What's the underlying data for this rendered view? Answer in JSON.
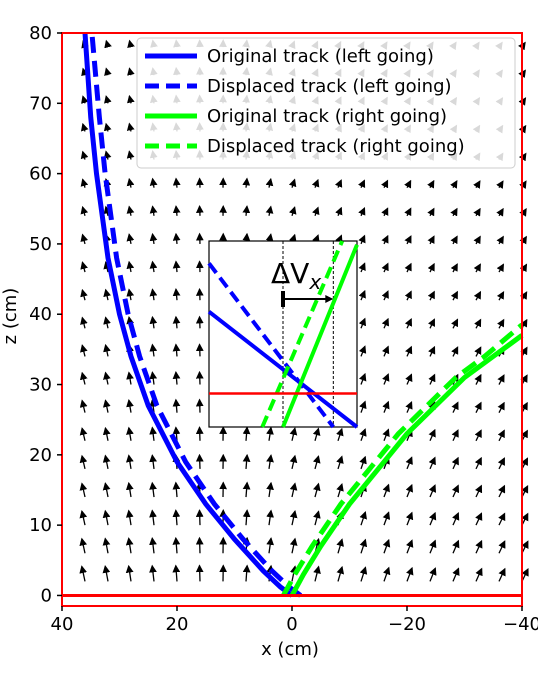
{
  "chart_data": {
    "type": "line",
    "xlabel": "x (cm)",
    "ylabel": "z (cm)",
    "xlim": [
      40,
      -40
    ],
    "ylim": [
      -1.5,
      80
    ],
    "xticks": [
      {
        "value": 40,
        "label": "40"
      },
      {
        "value": 20,
        "label": "20"
      },
      {
        "value": 0,
        "label": "0"
      },
      {
        "value": -20,
        "label": "−20"
      },
      {
        "value": -40,
        "label": "−40"
      }
    ],
    "yticks": [
      {
        "value": 0,
        "label": "0"
      },
      {
        "value": 10,
        "label": "10"
      },
      {
        "value": 20,
        "label": "20"
      },
      {
        "value": 30,
        "label": "30"
      },
      {
        "value": 40,
        "label": "40"
      },
      {
        "value": 50,
        "label": "50"
      },
      {
        "value": 60,
        "label": "60"
      },
      {
        "value": 70,
        "label": "70"
      },
      {
        "value": 80,
        "label": "80"
      }
    ],
    "frame_color": "#ff0000",
    "baseline": {
      "z": 0,
      "color": "#ff0000"
    },
    "series": [
      {
        "name": "Original track (left going)",
        "color": "#0000ff",
        "dash": "solid",
        "x": [
          0,
          2,
          5,
          10,
          15,
          20,
          25,
          28,
          30,
          32,
          34,
          35,
          36
        ],
        "y": [
          0,
          1.2,
          3.5,
          8,
          13,
          19,
          27,
          34,
          40,
          48,
          60,
          68,
          80
        ]
      },
      {
        "name": "Displaced track (left going)",
        "color": "#0000ff",
        "dash": "dashed",
        "x": [
          -1.5,
          0.5,
          3.5,
          8.5,
          13.5,
          18.5,
          23.5,
          26.5,
          28.5,
          30.5,
          32.5,
          33.5,
          34.8
        ],
        "y": [
          0,
          1.2,
          3.5,
          8,
          13,
          19,
          27,
          34,
          40,
          48,
          60,
          68,
          80
        ]
      },
      {
        "name": "Original track (right going)",
        "color": "#00ff00",
        "dash": "solid",
        "x": [
          0,
          -2,
          -5,
          -10,
          -15,
          -20,
          -25,
          -30,
          -35,
          -40
        ],
        "y": [
          0,
          3,
          7,
          13,
          18,
          23,
          27,
          31,
          34,
          37
        ]
      },
      {
        "name": "Displaced track (right going)",
        "color": "#00ff00",
        "dash": "dashed",
        "x": [
          1.5,
          -0.5,
          -3.5,
          -8.5,
          -13.5,
          -18.5,
          -23.5,
          -28.5,
          -33.5,
          -40
        ],
        "y": [
          0,
          3,
          7,
          13,
          18,
          23,
          27,
          31,
          34,
          38.5
        ]
      }
    ],
    "legend": {
      "placement": "top-right"
    },
    "quiver": {
      "color": "#000000",
      "description_values": "field arrows over grid"
    },
    "inset": {
      "annotation": "ΔV",
      "annotation_sub": "x",
      "lines": [
        {
          "color": "#0000ff",
          "dash": "solid",
          "x": [
            0,
            1
          ],
          "y": [
            0.62,
            0.0
          ]
        },
        {
          "color": "#0000ff",
          "dash": "dashed",
          "x": [
            0,
            0.84
          ],
          "y": [
            0.88,
            0.0
          ]
        },
        {
          "color": "#00ff00",
          "dash": "solid",
          "x": [
            0.5,
            1
          ],
          "y": [
            0.0,
            0.98
          ]
        },
        {
          "color": "#00ff00",
          "dash": "dashed",
          "x": [
            0.36,
            0.9
          ],
          "y": [
            0.0,
            1.0
          ]
        }
      ],
      "baseline_frac": 0.18,
      "dotted_x": [
        0.5,
        0.84
      ]
    }
  }
}
